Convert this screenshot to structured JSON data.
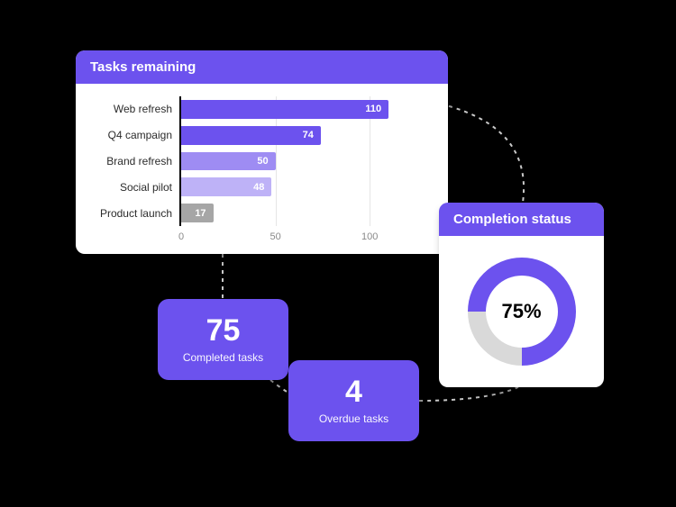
{
  "palette": {
    "accent": "#6c52ee",
    "card_bg": "#ffffff",
    "page_bg": "#000000",
    "grid": "#e5e5e5",
    "axis": "#000000",
    "tick_text": "#8a8a8a",
    "donut_track": "#d9d9d9",
    "connector": "#c9c9c9"
  },
  "tasks_remaining": {
    "title": "Tasks remaining",
    "type": "bar",
    "x_axis": {
      "min": 0,
      "max": 130,
      "ticks": [
        0,
        50,
        100
      ]
    },
    "bar_height_ratio": 0.72,
    "value_label_color": "#ffffff",
    "value_label_fontsize": 11,
    "category_label_fontsize": 12,
    "bars": [
      {
        "label": "Web refresh",
        "value": 110,
        "color": "#6c52ee"
      },
      {
        "label": "Q4 campaign",
        "value": 74,
        "color": "#6c52ee"
      },
      {
        "label": "Brand refresh",
        "value": 50,
        "color": "#9e8cf3"
      },
      {
        "label": "Social pilot",
        "value": 48,
        "color": "#beb2f7"
      },
      {
        "label": "Product launch",
        "value": 17,
        "color": "#a6a6a6"
      }
    ]
  },
  "completion": {
    "title": "Completion status",
    "type": "donut",
    "percent": 75,
    "display": "75%",
    "fill_color": "#6c52ee",
    "track_color": "#d9d9d9",
    "start_angle_deg": -90,
    "thickness_ratio": 0.33,
    "center_fontsize": 22
  },
  "stats": {
    "completed": {
      "value": "75",
      "label": "Completed tasks"
    },
    "overdue": {
      "value": "4",
      "label": "Overdue tasks"
    }
  },
  "stat_card_style": {
    "bg": "#6c52ee",
    "number_fontsize": 34,
    "label_fontsize": 12
  }
}
